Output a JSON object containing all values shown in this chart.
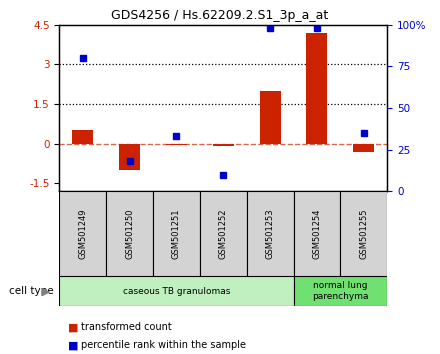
{
  "title": "GDS4256 / Hs.62209.2.S1_3p_a_at",
  "samples": [
    "GSM501249",
    "GSM501250",
    "GSM501251",
    "GSM501252",
    "GSM501253",
    "GSM501254",
    "GSM501255"
  ],
  "transformed_count": [
    0.5,
    -1.0,
    -0.05,
    -0.08,
    2.0,
    4.2,
    -0.3
  ],
  "percentile_rank": [
    80,
    18,
    33,
    10,
    98,
    98,
    35
  ],
  "ylim_left": [
    -1.8,
    4.5
  ],
  "ylim_right": [
    0,
    100
  ],
  "left_ticks": [
    -1.5,
    0.0,
    1.5,
    3.0,
    4.5
  ],
  "left_tick_labels": [
    "-1.5",
    "0",
    "1.5",
    "3",
    "4.5"
  ],
  "right_ticks": [
    0,
    25,
    50,
    75,
    100
  ],
  "right_tick_labels": [
    "0",
    "25",
    "50",
    "75",
    "100%"
  ],
  "hlines_dotted": [
    1.5,
    3.0
  ],
  "hline_zero_color": "#cc2200",
  "bar_color": "#cc2200",
  "dot_color": "#0000cc",
  "sample_box_color": "#d3d3d3",
  "cell_type_groups": [
    {
      "label": "caseous TB granulomas",
      "start": 0,
      "end": 5,
      "color": "#c0f0c0"
    },
    {
      "label": "normal lung\nparenchyma",
      "start": 5,
      "end": 7,
      "color": "#70e070"
    }
  ],
  "legend_bar_label": "transformed count",
  "legend_dot_label": "percentile rank within the sample",
  "cell_type_label": "cell type"
}
